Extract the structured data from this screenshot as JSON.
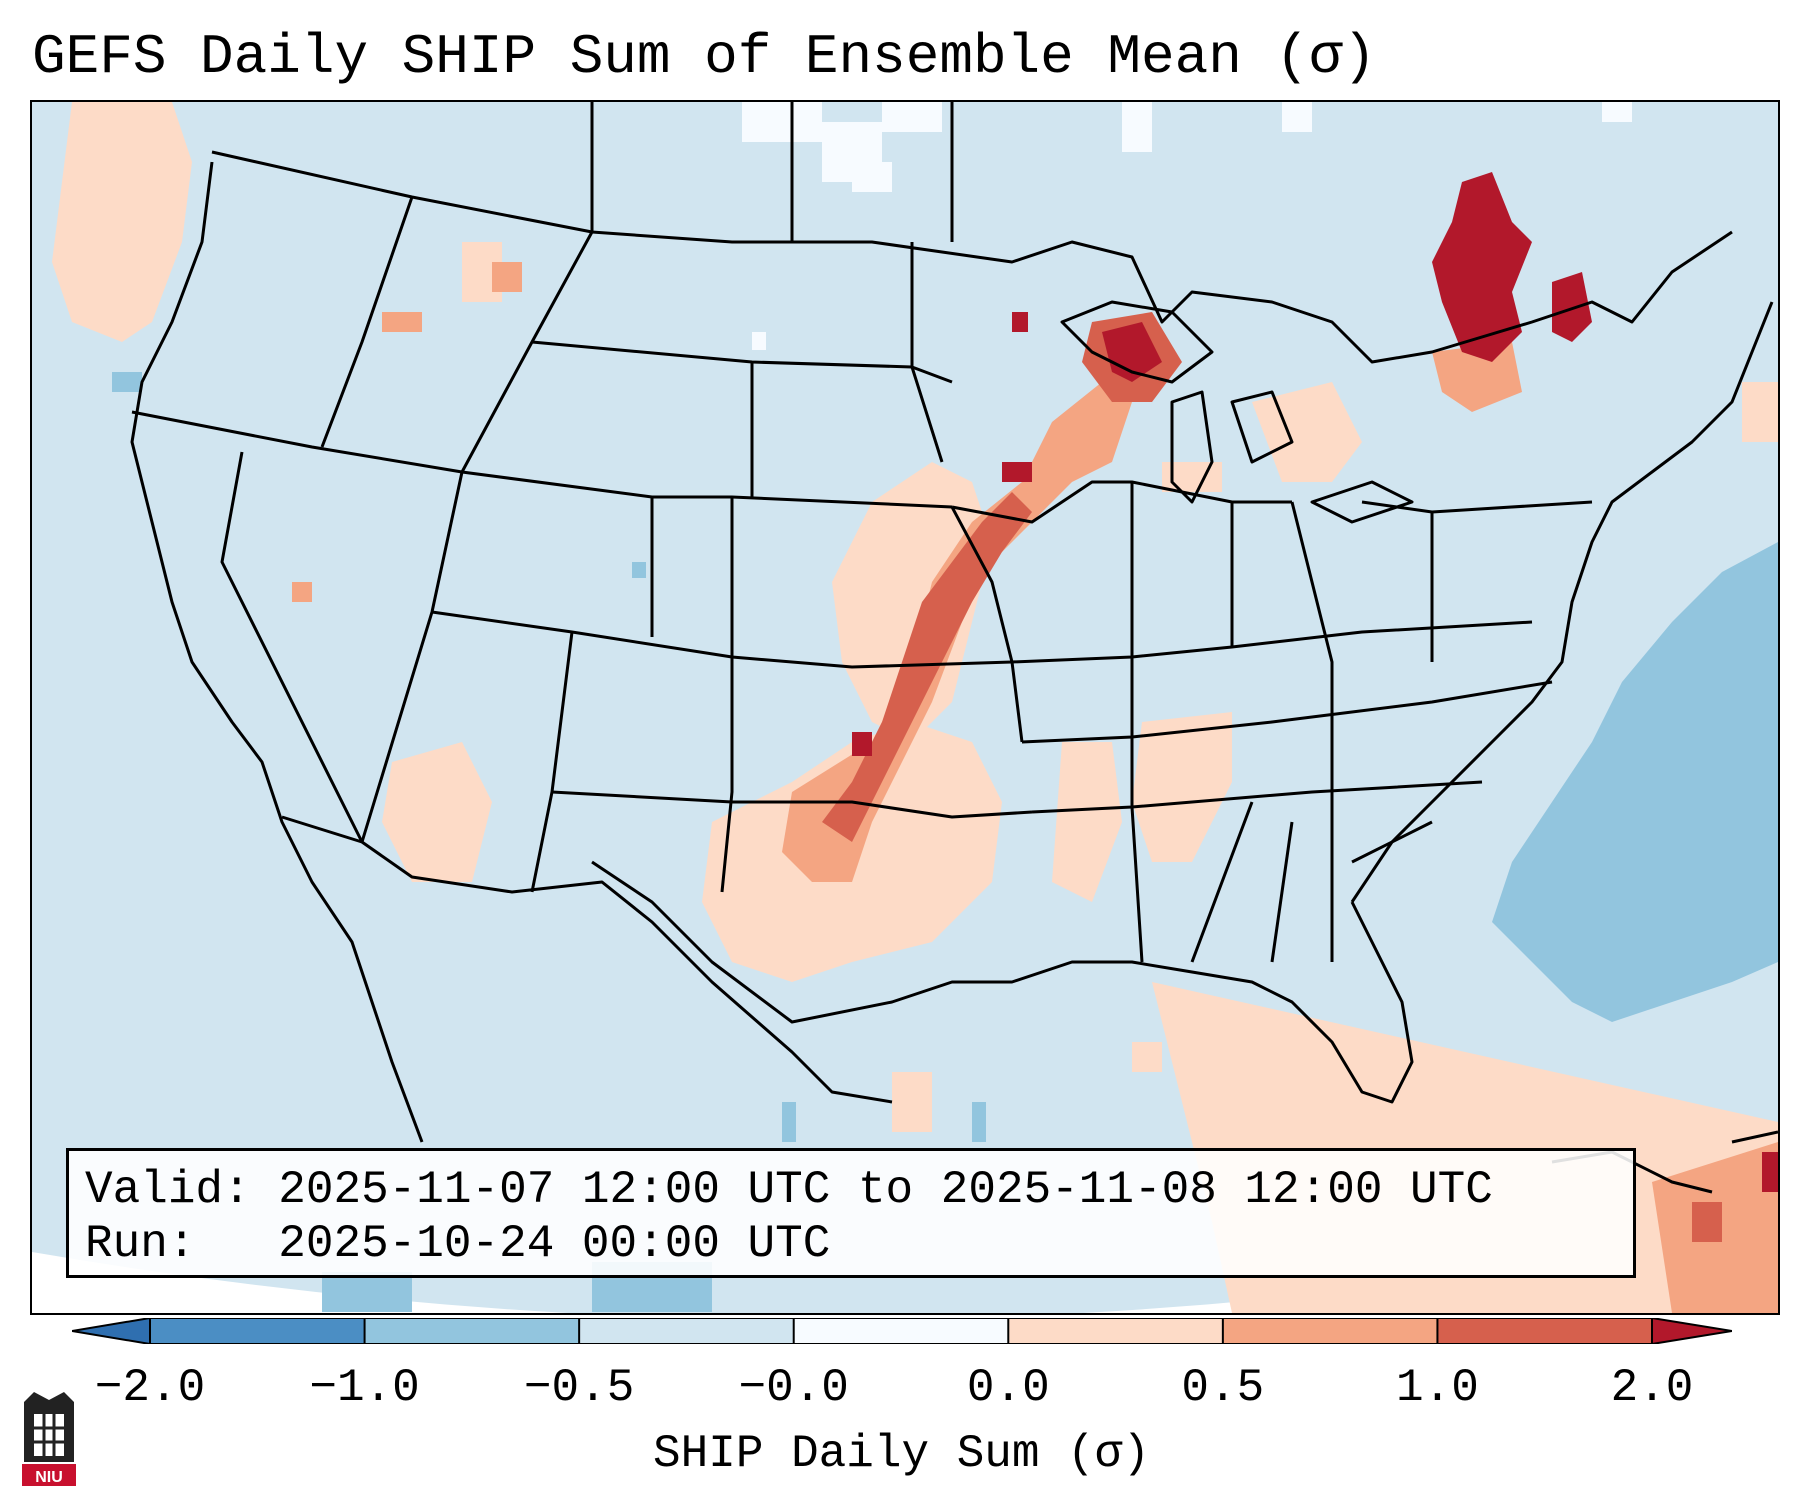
{
  "title": "GEFS Daily SHIP Sum of Ensemble Mean (σ)",
  "info": {
    "valid_label": "Valid:",
    "valid_value": "2025-11-07 12:00 UTC to 2025-11-08 12:00 UTC",
    "run_label": "Run:",
    "run_value": "2025-10-24 00:00 UTC"
  },
  "colorbar": {
    "label": "SHIP Daily Sum (σ)",
    "ticks": [
      "−2.0",
      "−1.0",
      "−0.5",
      "−0.0",
      "0.0",
      "0.5",
      "1.0",
      "2.0"
    ],
    "colors": [
      "#4b8ec4",
      "#92c5de",
      "#d1e5f0",
      "#f7fbff",
      "#fddbc7",
      "#f4a582",
      "#d6604d"
    ],
    "extend_low_color": "#2f6fb0",
    "extend_high_color": "#b2182b"
  },
  "map": {
    "projection": "Lambert Conformal",
    "region": "Contiguous United States",
    "background_color": "#d1e5f0",
    "outside_color": "#ffffff",
    "border_color": "#000000"
  },
  "logo": {
    "icon": "niu-logo-icon",
    "text": "NIU",
    "color": "#c8102e"
  }
}
